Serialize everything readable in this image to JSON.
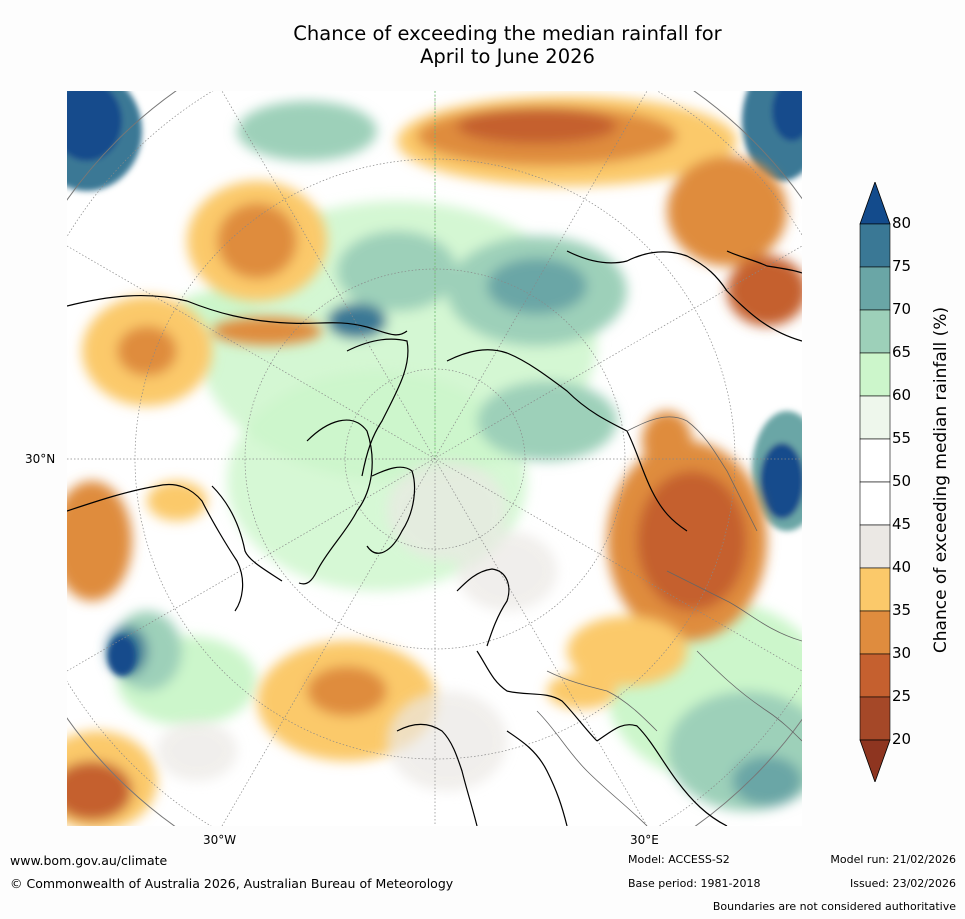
{
  "title": {
    "line1": "Chance of exceeding the median rainfall for",
    "line2": "April to June 2026"
  },
  "map": {
    "lat_labels": [
      "30°N"
    ],
    "lon_labels": [
      "30°W",
      "30°E"
    ]
  },
  "colorbar": {
    "label": "Chance of exceeding median rainfall (%)",
    "ticks": [
      "80",
      "75",
      "70",
      "65",
      "60",
      "55",
      "50",
      "45",
      "40",
      "35",
      "30",
      "25",
      "20"
    ],
    "colors_top_to_bottom": [
      "#134b8c",
      "#3a7895",
      "#6aa6a6",
      "#9dd0b9",
      "#ccf6cb",
      "#eef7ec",
      "#ffffff",
      "#ffffff",
      "#ebe8e4",
      "#fbc96a",
      "#df8c3e",
      "#c5602f",
      "#a54828",
      "#8e3520"
    ]
  },
  "footer": {
    "url": "www.bom.gov.au/climate",
    "copyright": "© Commonwealth of Australia 2026, Australian Bureau of Meteorology",
    "model": "Model: ACCESS-S2",
    "base_period": "Base period: 1981-2018",
    "model_run": "Model run: 21/02/2026",
    "issued": "Issued: 23/02/2026",
    "disclaimer": "Boundaries are not considered authoritative"
  }
}
